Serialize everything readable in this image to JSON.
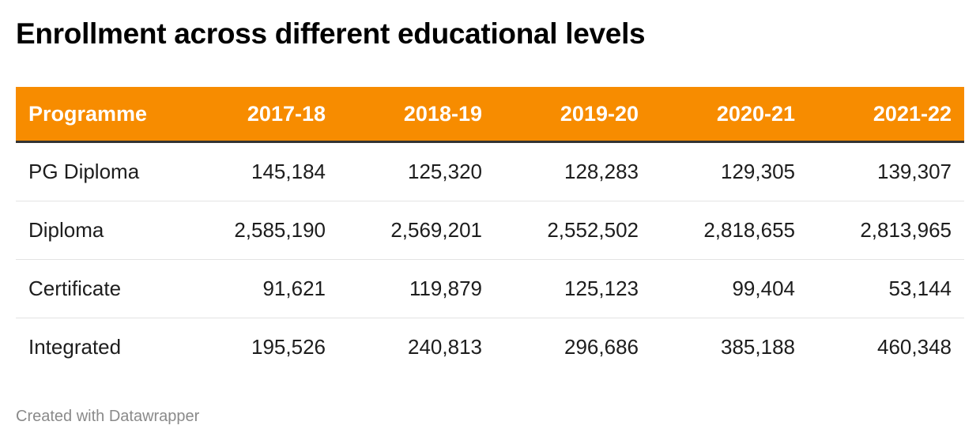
{
  "title": "Enrollment across different educational levels",
  "footer": "Created with Datawrapper",
  "colors": {
    "header_background": "#f78c00",
    "header_text": "#ffffff",
    "header_rule": "#333333",
    "row_divider": "#e3e3e3",
    "footer_text": "#8a8a8a"
  },
  "chart_data": {
    "type": "table",
    "title": "Enrollment across different educational levels",
    "columns": [
      "Programme",
      "2017-18",
      "2018-19",
      "2019-20",
      "2020-21",
      "2021-22"
    ],
    "rows": [
      [
        "PG Diploma",
        "145,184",
        "125,320",
        "128,283",
        "129,305",
        "139,307"
      ],
      [
        "Diploma",
        "2,585,190",
        "2,569,201",
        "2,552,502",
        "2,818,655",
        "2,813,965"
      ],
      [
        "Certificate",
        "91,621",
        "119,879",
        "125,123",
        "99,404",
        "53,144"
      ],
      [
        "Integrated",
        "195,526",
        "240,813",
        "296,686",
        "385,188",
        "460,348"
      ]
    ]
  }
}
